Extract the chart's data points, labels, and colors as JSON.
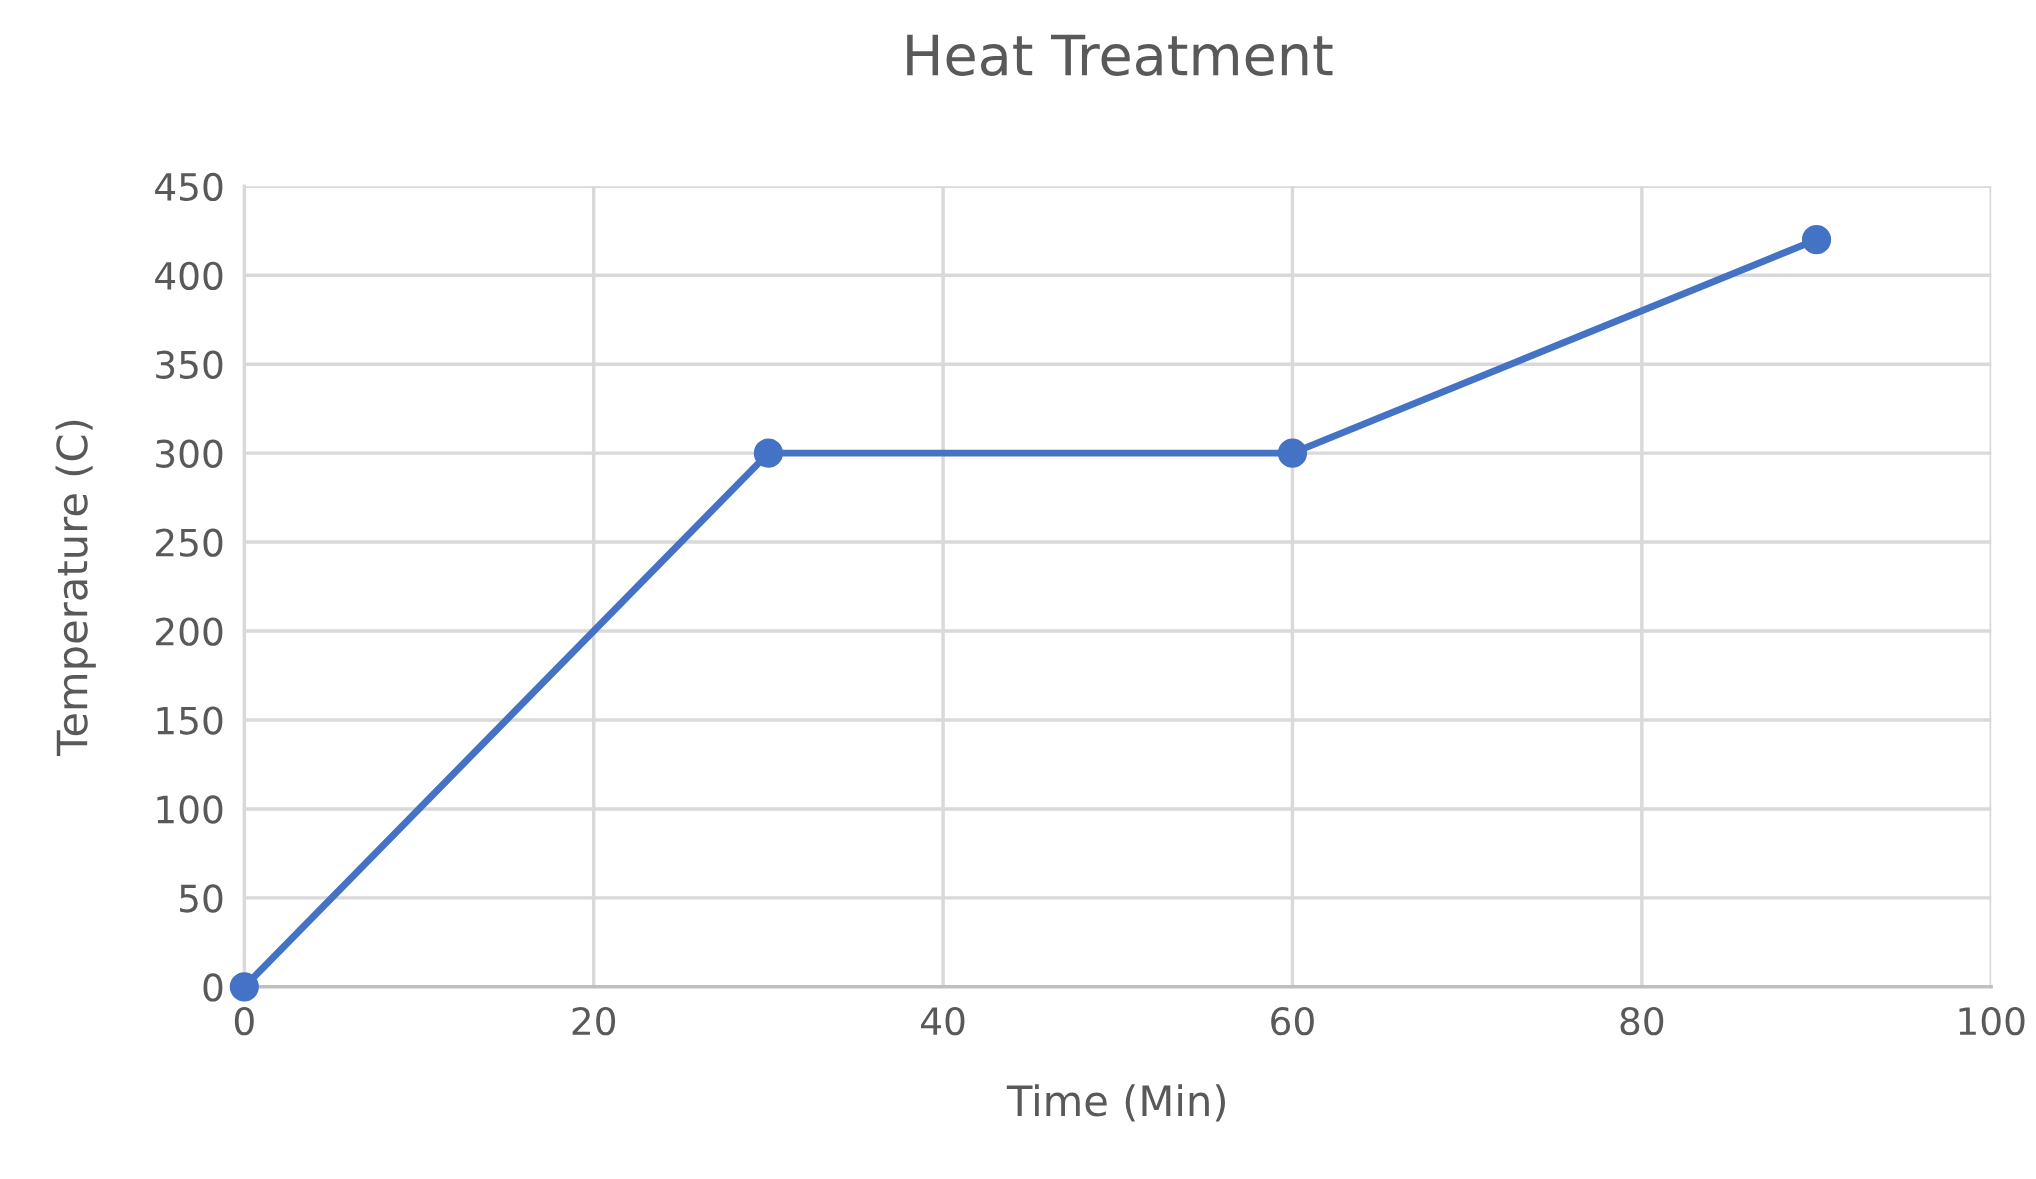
{
  "chart_data": {
    "type": "line",
    "title": "Heat Treatment",
    "xlabel": "Time (Min)",
    "ylabel": "Temperature (C)",
    "x": [
      0,
      30,
      60,
      90
    ],
    "series": [
      {
        "color": "#4472c4",
        "values": [
          0,
          300,
          300,
          420
        ]
      }
    ],
    "xlim": [
      0,
      100
    ],
    "xticks": [
      0,
      20,
      40,
      60,
      80,
      100
    ],
    "ylim": [
      0,
      450
    ],
    "yticks": [
      0,
      50,
      100,
      150,
      200,
      250,
      300,
      350,
      400,
      450
    ],
    "grid": true,
    "marker": "circle",
    "line_style": "solid"
  }
}
